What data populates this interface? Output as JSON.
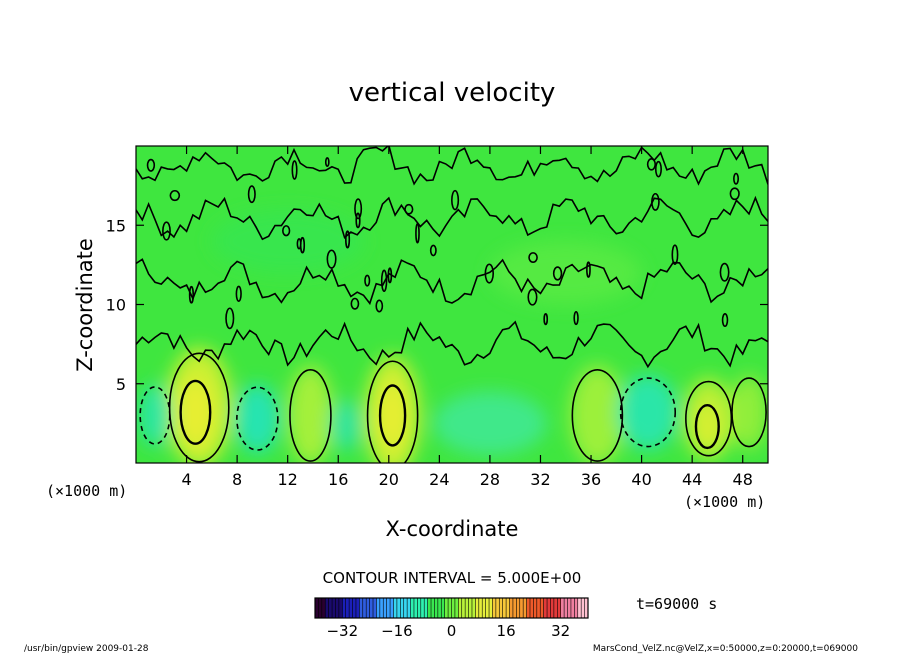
{
  "chart_data": {
    "type": "heatmap",
    "title": "vertical velocity",
    "xlabel": "X-coordinate",
    "ylabel": "Z-coordinate",
    "x_unit_left": "(×1000 m)",
    "x_unit_right": "(×1000 m)",
    "xlim": [
      0,
      50
    ],
    "ylim": [
      0,
      20
    ],
    "x_ticks": [
      4,
      8,
      12,
      16,
      20,
      24,
      28,
      32,
      36,
      40,
      44,
      48
    ],
    "y_ticks": [
      5,
      10,
      15
    ],
    "contour_interval_text": "CONTOUR INTERVAL = 5.000E+00",
    "time_text": "t=69000 s",
    "colorbar": {
      "min": -40,
      "max": 40,
      "ticks": [
        -32,
        -16,
        0,
        16,
        32
      ],
      "colors": [
        "#2a0030",
        "#1a0a6e",
        "#1b1fb8",
        "#2f5de0",
        "#3aa0ff",
        "#38d6f0",
        "#2ef2b0",
        "#39e850",
        "#6ef040",
        "#b8f23a",
        "#e6ee3c",
        "#f6c83a",
        "#f69a30",
        "#ee5a2a",
        "#e23a3a",
        "#f07fa0",
        "#ffc0d0"
      ]
    },
    "field": {
      "background_color": "#3fe63f",
      "cells": [
        {
          "x": 5.0,
          "z": 3.5,
          "rx": 2.6,
          "rz": 3.8,
          "v": 16,
          "color": "#c8f030"
        },
        {
          "x": 4.7,
          "z": 3.2,
          "rx": 1.3,
          "rz": 2.2,
          "v": 28,
          "color": "#e8ee30"
        },
        {
          "x": 1.5,
          "z": 3.0,
          "rx": 1.3,
          "rz": 2.0,
          "v": -8,
          "color": "#2ae6a0"
        },
        {
          "x": 9.6,
          "z": 2.8,
          "rx": 1.8,
          "rz": 2.2,
          "v": -10,
          "color": "#26e4b0"
        },
        {
          "x": 13.8,
          "z": 3.0,
          "rx": 1.8,
          "rz": 3.2,
          "v": 12,
          "color": "#a4f03a"
        },
        {
          "x": 16.6,
          "z": 2.4,
          "rx": 1.3,
          "rz": 1.6,
          "v": -6,
          "color": "#2ee49a"
        },
        {
          "x": 20.3,
          "z": 3.0,
          "rx": 2.2,
          "rz": 3.8,
          "v": 16,
          "color": "#c8f030"
        },
        {
          "x": 20.3,
          "z": 3.0,
          "rx": 1.1,
          "rz": 2.1,
          "v": 28,
          "color": "#e8ee30"
        },
        {
          "x": 28.0,
          "z": 2.5,
          "rx": 4.5,
          "rz": 2.0,
          "v": -4,
          "color": "#40e88a"
        },
        {
          "x": 36.5,
          "z": 3.0,
          "rx": 2.2,
          "rz": 3.2,
          "v": 12,
          "color": "#9cf03a"
        },
        {
          "x": 40.5,
          "z": 3.2,
          "rx": 2.4,
          "rz": 2.4,
          "v": -8,
          "color": "#2ae6a8"
        },
        {
          "x": 45.3,
          "z": 2.8,
          "rx": 2.0,
          "rz": 2.6,
          "v": 14,
          "color": "#b6f034"
        },
        {
          "x": 45.2,
          "z": 2.3,
          "rx": 1.0,
          "rz": 1.5,
          "v": 22,
          "color": "#d8ef30"
        },
        {
          "x": 48.5,
          "z": 3.2,
          "rx": 1.5,
          "rz": 2.4,
          "v": 10,
          "color": "#90ee3a"
        },
        {
          "x": 34.0,
          "z": 12.0,
          "rx": 6.0,
          "rz": 2.0,
          "v": 2,
          "color": "#55ea42"
        },
        {
          "x": 12.0,
          "z": 14.0,
          "rx": 6.0,
          "rz": 2.0,
          "v": -2,
          "color": "#38e64e"
        }
      ]
    }
  },
  "footer": {
    "left": "/usr/bin/gpview  2009-01-28",
    "right": "MarsCond_VelZ.nc@VelZ,x=0:50000,z=0:20000,t=069000"
  }
}
